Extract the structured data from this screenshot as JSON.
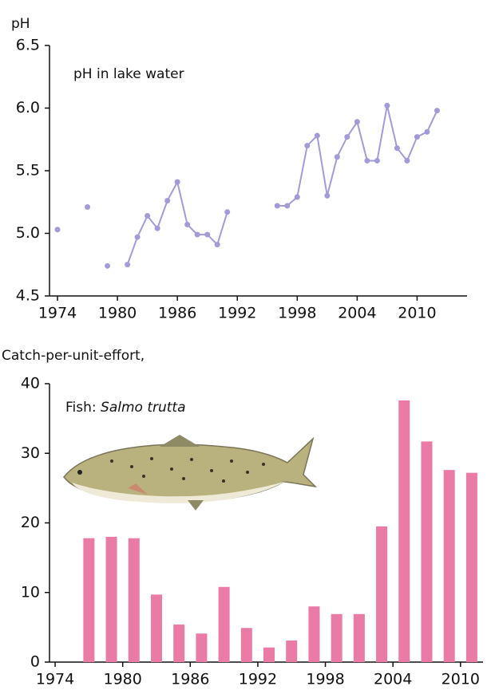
{
  "chart_data": [
    {
      "type": "line",
      "y_label": "pH",
      "annotation": "pH in lake water",
      "color": "#a29bd9",
      "x": [
        1974,
        1975,
        1977,
        1978,
        1979,
        1980,
        1981,
        1982,
        1983,
        1984,
        1985,
        1986,
        1987,
        1988,
        1989,
        1990,
        1991,
        1992,
        1996,
        1997,
        1998,
        1999,
        2000,
        2001,
        2002,
        2003,
        2004,
        2005,
        2006,
        2007,
        2008,
        2009,
        2010,
        2011,
        2012
      ],
      "series": [
        {
          "name": "pH",
          "color": "#a29bd9",
          "values": [
            5.03,
            null,
            5.21,
            null,
            4.74,
            null,
            4.75,
            4.97,
            5.14,
            5.04,
            5.26,
            5.41,
            5.07,
            4.99,
            4.99,
            4.91,
            5.17,
            null,
            5.22,
            5.22,
            5.29,
            5.7,
            5.78,
            5.3,
            5.61,
            5.77,
            5.89,
            5.58,
            5.58,
            6.02,
            5.68,
            5.58,
            5.77,
            5.81,
            5.98
          ]
        }
      ],
      "xlim": [
        1973.2,
        2015
      ],
      "xticks": [
        1974,
        1980,
        1986,
        1992,
        1998,
        2004,
        2010
      ],
      "ylim": [
        4.5,
        6.5
      ],
      "yticks": [
        {
          "value": 4.5,
          "label": "4.5"
        },
        {
          "value": 5,
          "label": "5.0"
        },
        5.5,
        {
          "value": 6,
          "label": "6.0"
        },
        6.5
      ]
    },
    {
      "type": "bar",
      "y_label": "Catch-per-unit-effort,",
      "annotation": "Fish: ",
      "annotation_species": "Salmo trutta",
      "color": "#ea7aa6",
      "x": [
        1977,
        1979,
        1981,
        1983,
        1985,
        1987,
        1989,
        1991,
        1993,
        1995,
        1997,
        1999,
        2001,
        2003,
        2005,
        2007,
        2009,
        2011
      ],
      "values": [
        17.8,
        18.0,
        17.8,
        9.7,
        5.4,
        4.1,
        10.8,
        4.9,
        2.1,
        3.1,
        8.0,
        6.9,
        6.9,
        19.5,
        37.6,
        31.7,
        27.6,
        27.2
      ],
      "xlim": [
        1973.5,
        2012
      ],
      "xticks": [
        1974,
        1980,
        1986,
        1992,
        1998,
        2004,
        2010
      ],
      "ylim": [
        0,
        40
      ],
      "yticks": [
        0,
        10,
        20,
        30,
        40
      ]
    }
  ]
}
